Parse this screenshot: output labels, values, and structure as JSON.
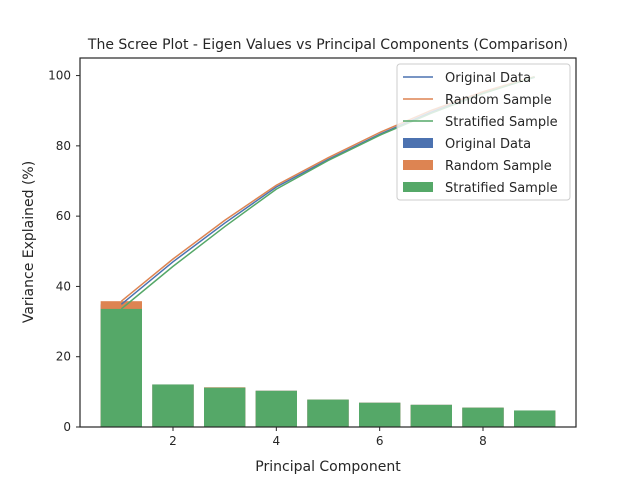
{
  "chart_data": {
    "type": "bar",
    "title": "The Scree Plot - Eigen Values vs Principal Components (Comparison)",
    "xlabel": "Principal Component",
    "ylabel": "Variance Explained (%)",
    "xlim": [
      0.2,
      9.8
    ],
    "ylim": [
      0,
      105
    ],
    "xticks": [
      2,
      4,
      6,
      8
    ],
    "yticks": [
      0,
      20,
      40,
      60,
      80,
      100
    ],
    "grid": false,
    "legend_position": "top-right",
    "x": [
      1,
      2,
      3,
      4,
      5,
      6,
      7,
      8,
      9
    ],
    "bar_series": [
      {
        "name": "Original Data",
        "color": "#4c72b0",
        "values": [
          34.9,
          12.1,
          11.2,
          10.3,
          7.8,
          6.9,
          6.3,
          5.5,
          4.7
        ]
      },
      {
        "name": "Random Sample",
        "color": "#dd8452",
        "values": [
          35.8,
          12.1,
          11.3,
          10.3,
          7.8,
          6.9,
          6.3,
          5.5,
          4.7
        ]
      },
      {
        "name": "Stratified Sample",
        "color": "#55a868",
        "values": [
          33.6,
          12.1,
          11.2,
          10.3,
          7.8,
          6.9,
          6.3,
          5.5,
          4.7
        ]
      }
    ],
    "line_series": [
      {
        "name": "Original Data",
        "color": "#4c72b0",
        "values": [
          34.9,
          47.0,
          58.0,
          68.3,
          76.1,
          83.3,
          89.6,
          95.1,
          99.5
        ]
      },
      {
        "name": "Random Sample",
        "color": "#dd8452",
        "values": [
          35.8,
          47.8,
          58.8,
          68.8,
          76.6,
          83.8,
          90.1,
          95.4,
          99.7
        ]
      },
      {
        "name": "Stratified Sample",
        "color": "#55a868",
        "values": [
          33.6,
          45.7,
          57.0,
          67.7,
          75.8,
          83.0,
          89.3,
          94.9,
          99.6
        ]
      }
    ]
  }
}
